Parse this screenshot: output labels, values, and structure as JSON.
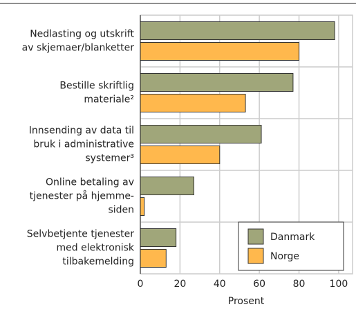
{
  "chart_data": {
    "type": "hbar",
    "categories": [
      [
        "Nedlasting og utskrift",
        "av skjemaer/blanketter"
      ],
      [
        "Bestille skriftlig",
        "materiale²"
      ],
      [
        "Innsending av data til",
        "bruk i administrative",
        "systemer³"
      ],
      [
        "Online betaling av",
        "tjenester på hjemme-",
        "siden"
      ],
      [
        "Selvbetjente tjenester",
        "med elektronisk",
        "tilbakemelding"
      ]
    ],
    "series": [
      {
        "name": "Danmark",
        "color": "#a0a67a",
        "values": [
          98,
          77,
          61,
          27,
          18
        ]
      },
      {
        "name": "Norge",
        "color": "#ffb84d",
        "values": [
          80,
          53,
          40,
          2,
          13
        ]
      }
    ],
    "xlabel": "Prosent",
    "xlim": [
      0,
      107
    ],
    "xticks": [
      0,
      20,
      40,
      60,
      80,
      100
    ],
    "grid": true,
    "legend": "lower right"
  }
}
